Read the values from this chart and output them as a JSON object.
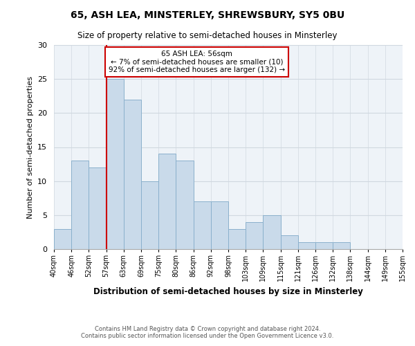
{
  "title1": "65, ASH LEA, MINSTERLEY, SHREWSBURY, SY5 0BU",
  "title2": "Size of property relative to semi-detached houses in Minsterley",
  "xlabel": "Distribution of semi-detached houses by size in Minsterley",
  "ylabel": "Number of semi-detached properties",
  "footer1": "Contains HM Land Registry data © Crown copyright and database right 2024.",
  "footer2": "Contains public sector information licensed under the Open Government Licence v3.0.",
  "annotation_title": "65 ASH LEA: 56sqm",
  "annotation_line1": "← 7% of semi-detached houses are smaller (10)",
  "annotation_line2": "92% of semi-detached houses are larger (132) →",
  "bar_color": "#c9daea",
  "bar_edge_color": "#8ab0cc",
  "subject_line_color": "#cc0000",
  "annotation_box_edgecolor": "#cc0000",
  "tick_labels": [
    "40sqm",
    "46sqm",
    "52sqm",
    "57sqm",
    "63sqm",
    "69sqm",
    "75sqm",
    "80sqm",
    "86sqm",
    "92sqm",
    "98sqm",
    "103sqm",
    "109sqm",
    "115sqm",
    "121sqm",
    "126sqm",
    "132sqm",
    "138sqm",
    "144sqm",
    "149sqm",
    "155sqm"
  ],
  "bar_heights": [
    3,
    13,
    12,
    25,
    22,
    10,
    14,
    13,
    7,
    7,
    3,
    4,
    5,
    2,
    1,
    1,
    1,
    0,
    0,
    0
  ],
  "ylim": [
    0,
    30
  ],
  "yticks": [
    0,
    5,
    10,
    15,
    20,
    25,
    30
  ],
  "subject_line_bin_index": 3,
  "grid_color": "#d0d8e0",
  "bg_color": "#eef3f8"
}
